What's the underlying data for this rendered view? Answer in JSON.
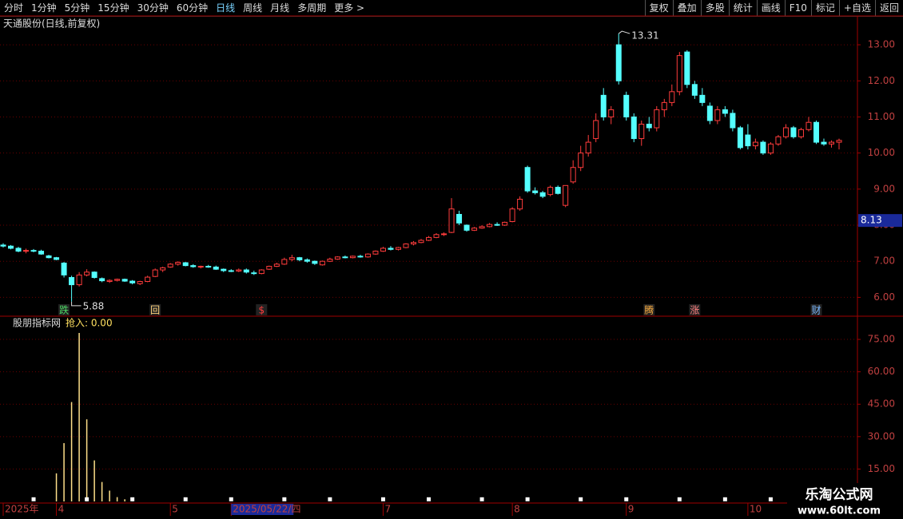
{
  "toolbar": {
    "left": [
      "分时",
      "1分钟",
      "5分钟",
      "15分钟",
      "30分钟",
      "60分钟",
      "日线",
      "周线",
      "月线",
      "多周期",
      "更多 >"
    ],
    "active": "日线",
    "right": [
      "复权",
      "叠加",
      "多股",
      "统计",
      "画线",
      "F10",
      "标记",
      "+自选",
      "返回"
    ]
  },
  "watermark": {
    "title": "乐淘公式网",
    "url": "www.60lt.com"
  },
  "chart_data": [
    {
      "type": "candlestick",
      "title": "天通股份(日线,前复权)",
      "up_color": "#ff3c3c",
      "down_color": "#54ffff",
      "ylim": [
        5.5,
        13.4
      ],
      "yticks": [
        {
          "value": 6,
          "label": "6.00"
        },
        {
          "value": 7,
          "label": "7.00"
        },
        {
          "value": 8,
          "label": "8.00"
        },
        {
          "value": 9,
          "label": "9.00"
        },
        {
          "value": 10,
          "label": "10.00"
        },
        {
          "value": 11,
          "label": "11.00"
        },
        {
          "value": 12,
          "label": "12.00"
        },
        {
          "value": 13,
          "label": "13.00"
        }
      ],
      "grid": true,
      "price_tag": 8.13,
      "high_annotation": 13.31,
      "low_annotation": 5.88,
      "date_labels": [
        {
          "index": 0,
          "label": "2025年"
        },
        {
          "index": 7,
          "label": "4"
        },
        {
          "index": 22,
          "label": "5"
        },
        {
          "index": 30,
          "label": "2025/05/22/四"
        },
        {
          "index": 50,
          "label": "7"
        },
        {
          "index": 67,
          "label": "8"
        },
        {
          "index": 82,
          "label": "9"
        },
        {
          "index": 98,
          "label": "10"
        }
      ],
      "signals": [
        {
          "index": 8,
          "label": "跌",
          "color": "#4cd964"
        },
        {
          "index": 20,
          "label": "回",
          "color": "#ffd27a"
        },
        {
          "index": 34,
          "label": "$",
          "color": "#ff3c3c"
        },
        {
          "index": 85,
          "label": "腾",
          "color": "#ffb040"
        },
        {
          "index": 91,
          "label": "涨",
          "color": "#ff8080"
        },
        {
          "index": 107,
          "label": "财",
          "color": "#7ab8ff"
        }
      ],
      "candles": [
        [
          7.45,
          7.5,
          7.38,
          7.42
        ],
        [
          7.42,
          7.45,
          7.33,
          7.36
        ],
        [
          7.36,
          7.4,
          7.25,
          7.28
        ],
        [
          7.28,
          7.35,
          7.22,
          7.3
        ],
        [
          7.3,
          7.34,
          7.25,
          7.28
        ],
        [
          7.28,
          7.32,
          7.18,
          7.2
        ],
        [
          7.15,
          7.18,
          7.08,
          7.1
        ],
        [
          7.1,
          7.12,
          7.03,
          7.05
        ],
        [
          6.95,
          6.98,
          6.55,
          6.62
        ],
        [
          6.55,
          6.6,
          5.88,
          6.35
        ],
        [
          6.35,
          6.7,
          6.3,
          6.62
        ],
        [
          6.62,
          6.78,
          6.58,
          6.7
        ],
        [
          6.7,
          6.72,
          6.52,
          6.55
        ],
        [
          6.52,
          6.55,
          6.42,
          6.46
        ],
        [
          6.44,
          6.5,
          6.4,
          6.47
        ],
        [
          6.47,
          6.52,
          6.44,
          6.5
        ],
        [
          6.5,
          6.52,
          6.43,
          6.45
        ],
        [
          6.45,
          6.48,
          6.36,
          6.4
        ],
        [
          6.38,
          6.46,
          6.34,
          6.44
        ],
        [
          6.44,
          6.6,
          6.42,
          6.56
        ],
        [
          6.58,
          6.8,
          6.56,
          6.76
        ],
        [
          6.76,
          6.85,
          6.7,
          6.82
        ],
        [
          6.84,
          6.95,
          6.82,
          6.92
        ],
        [
          6.92,
          7.0,
          6.88,
          6.97
        ],
        [
          6.96,
          6.98,
          6.86,
          6.88
        ],
        [
          6.88,
          6.92,
          6.82,
          6.85
        ],
        [
          6.85,
          6.88,
          6.8,
          6.86
        ],
        [
          6.86,
          6.9,
          6.82,
          6.84
        ],
        [
          6.84,
          6.88,
          6.76,
          6.78
        ],
        [
          6.78,
          6.8,
          6.7,
          6.74
        ],
        [
          6.74,
          6.78,
          6.7,
          6.73
        ],
        [
          6.73,
          6.8,
          6.7,
          6.76
        ],
        [
          6.76,
          6.8,
          6.66,
          6.7
        ],
        [
          6.68,
          6.74,
          6.62,
          6.66
        ],
        [
          6.66,
          6.78,
          6.64,
          6.76
        ],
        [
          6.78,
          6.88,
          6.76,
          6.86
        ],
        [
          6.86,
          6.96,
          6.84,
          6.92
        ],
        [
          6.92,
          7.1,
          6.9,
          7.05
        ],
        [
          7.05,
          7.18,
          7.0,
          7.1
        ],
        [
          7.1,
          7.12,
          7.0,
          7.04
        ],
        [
          7.04,
          7.08,
          6.96,
          7.0
        ],
        [
          7.0,
          7.02,
          6.9,
          6.94
        ],
        [
          6.9,
          7.02,
          6.88,
          7.0
        ],
        [
          7.0,
          7.1,
          6.98,
          7.06
        ],
        [
          7.06,
          7.14,
          7.04,
          7.12
        ],
        [
          7.12,
          7.16,
          7.08,
          7.1
        ],
        [
          7.1,
          7.16,
          7.08,
          7.14
        ],
        [
          7.14,
          7.18,
          7.1,
          7.12
        ],
        [
          7.12,
          7.22,
          7.1,
          7.2
        ],
        [
          7.2,
          7.3,
          7.18,
          7.28
        ],
        [
          7.28,
          7.4,
          7.26,
          7.36
        ],
        [
          7.36,
          7.42,
          7.3,
          7.33
        ],
        [
          7.33,
          7.4,
          7.3,
          7.38
        ],
        [
          7.38,
          7.5,
          7.36,
          7.48
        ],
        [
          7.48,
          7.56,
          7.44,
          7.52
        ],
        [
          7.52,
          7.62,
          7.5,
          7.58
        ],
        [
          7.58,
          7.7,
          7.56,
          7.66
        ],
        [
          7.66,
          7.78,
          7.64,
          7.74
        ],
        [
          7.74,
          7.8,
          7.7,
          7.76
        ],
        [
          7.8,
          8.75,
          7.78,
          8.45
        ],
        [
          8.3,
          8.4,
          8.0,
          8.06
        ],
        [
          8.0,
          8.02,
          7.82,
          7.86
        ],
        [
          7.86,
          7.95,
          7.84,
          7.92
        ],
        [
          7.92,
          8.0,
          7.9,
          7.96
        ],
        [
          7.96,
          8.06,
          7.94,
          8.02
        ],
        [
          8.02,
          8.08,
          7.98,
          8.0
        ],
        [
          8.0,
          8.1,
          7.98,
          8.08
        ],
        [
          8.1,
          8.5,
          8.08,
          8.45
        ],
        [
          8.45,
          8.8,
          8.4,
          8.72
        ],
        [
          9.6,
          9.65,
          8.9,
          8.95
        ],
        [
          8.95,
          9.05,
          8.85,
          8.9
        ],
        [
          8.9,
          8.95,
          8.75,
          8.8
        ],
        [
          8.85,
          9.1,
          8.8,
          9.05
        ],
        [
          9.05,
          9.1,
          8.85,
          8.88
        ],
        [
          8.55,
          9.1,
          8.5,
          9.1
        ],
        [
          9.2,
          9.8,
          9.15,
          9.6
        ],
        [
          9.6,
          10.2,
          9.5,
          10.0
        ],
        [
          10.0,
          10.5,
          9.9,
          10.3
        ],
        [
          10.4,
          11.1,
          10.3,
          10.9
        ],
        [
          11.6,
          11.8,
          10.9,
          11.0
        ],
        [
          11.0,
          11.3,
          10.8,
          11.2
        ],
        [
          13.0,
          13.31,
          11.9,
          12.0
        ],
        [
          11.6,
          11.7,
          10.9,
          11.0
        ],
        [
          11.0,
          11.1,
          10.3,
          10.4
        ],
        [
          10.4,
          10.9,
          10.2,
          10.8
        ],
        [
          10.8,
          11.0,
          10.6,
          10.7
        ],
        [
          10.7,
          11.3,
          10.6,
          11.2
        ],
        [
          11.2,
          11.5,
          11.0,
          11.4
        ],
        [
          11.4,
          11.9,
          11.3,
          11.7
        ],
        [
          11.7,
          12.8,
          11.6,
          12.7
        ],
        [
          12.8,
          12.85,
          11.8,
          11.9
        ],
        [
          11.9,
          12.0,
          11.5,
          11.6
        ],
        [
          11.6,
          11.8,
          11.3,
          11.4
        ],
        [
          11.3,
          11.4,
          10.8,
          10.9
        ],
        [
          10.9,
          11.3,
          10.8,
          11.2
        ],
        [
          11.2,
          11.3,
          11.0,
          11.1
        ],
        [
          11.1,
          11.2,
          10.6,
          10.7
        ],
        [
          10.7,
          10.75,
          10.1,
          10.15
        ],
        [
          10.5,
          10.8,
          10.1,
          10.2
        ],
        [
          10.2,
          10.4,
          10.1,
          10.3
        ],
        [
          10.3,
          10.35,
          9.95,
          10.0
        ],
        [
          10.0,
          10.3,
          9.95,
          10.25
        ],
        [
          10.25,
          10.5,
          10.2,
          10.45
        ],
        [
          10.45,
          10.8,
          10.4,
          10.7
        ],
        [
          10.7,
          10.75,
          10.4,
          10.45
        ],
        [
          10.45,
          10.7,
          10.4,
          10.65
        ],
        [
          10.65,
          11.0,
          10.6,
          10.85
        ],
        [
          10.85,
          10.9,
          10.25,
          10.3
        ],
        [
          10.3,
          10.4,
          10.2,
          10.25
        ],
        [
          10.25,
          10.35,
          10.15,
          10.3
        ],
        [
          10.3,
          10.4,
          10.1,
          10.35
        ]
      ]
    },
    {
      "type": "bar",
      "title": "股朋指标网",
      "indicator_label": "抢入: 0.00",
      "color": "#ffe08a",
      "ylim": [
        0,
        85
      ],
      "yticks": [
        {
          "value": 15,
          "label": "15.00"
        },
        {
          "value": 30,
          "label": "30.00"
        },
        {
          "value": 45,
          "label": "45.00"
        },
        {
          "value": 60,
          "label": "60.00"
        },
        {
          "value": 75,
          "label": "75.00"
        }
      ],
      "grid": true,
      "values": [
        0,
        0,
        0,
        0,
        0,
        0,
        0,
        13,
        27,
        46,
        78,
        38,
        19,
        9,
        5,
        2,
        1,
        1,
        0,
        0,
        0,
        0,
        0,
        0,
        0,
        0,
        0,
        0,
        0,
        0,
        0,
        0,
        0,
        0,
        0,
        0,
        0,
        0,
        0,
        0,
        0,
        0,
        0,
        0,
        0,
        0,
        0,
        0,
        0,
        0,
        0,
        0,
        0,
        0,
        0,
        0,
        0,
        0,
        0,
        0,
        0,
        0,
        0,
        0,
        0,
        0,
        0,
        0,
        0,
        0,
        0,
        0,
        0,
        0,
        0,
        0,
        0,
        0,
        0,
        0,
        0,
        0,
        0,
        0,
        0,
        0,
        0,
        0,
        0,
        0,
        0,
        0,
        0,
        0,
        0,
        0,
        0,
        0,
        0,
        0,
        0,
        0,
        0,
        0,
        0,
        0,
        0,
        0,
        0,
        0,
        0
      ],
      "dot_value": 1,
      "dot_indices": [
        4,
        11,
        17,
        24,
        30,
        37,
        43,
        50,
        56,
        63,
        69,
        76,
        82,
        89,
        95,
        101
      ]
    }
  ]
}
